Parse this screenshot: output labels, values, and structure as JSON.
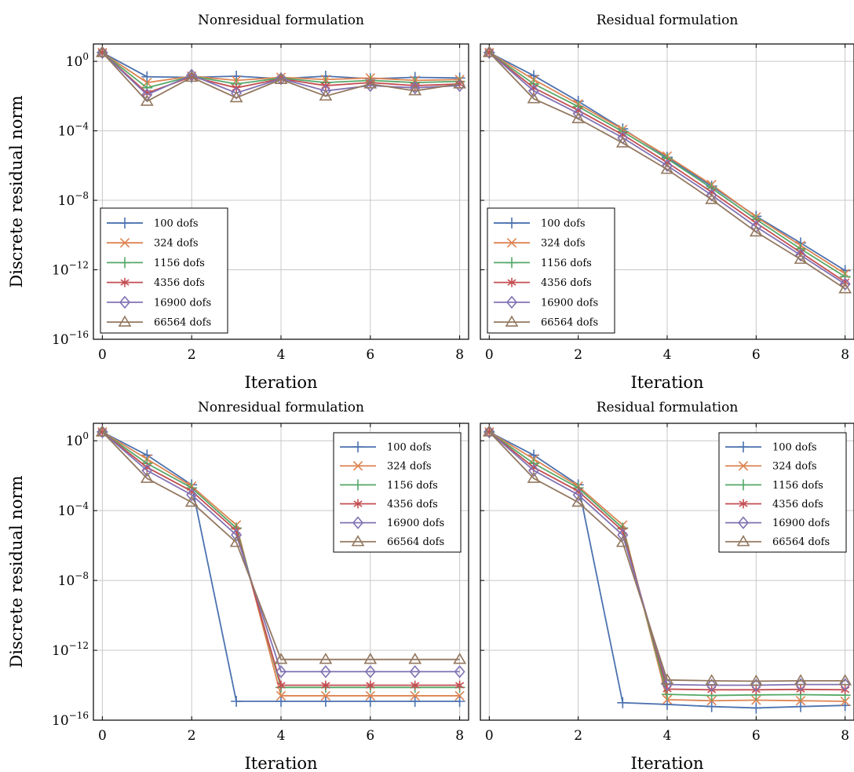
{
  "colors": {
    "100 dofs": "#4c72b0",
    "324 dofs": "#dd8452",
    "1156 dofs": "#55a868",
    "4356 dofs": "#c44e52",
    "16900 dofs": "#8172b3",
    "66564 dofs": "#937860"
  },
  "markers": {
    "100 dofs": "plus",
    "324 dofs": "cross",
    "1156 dofs": "plus",
    "4356 dofs": "asterisk",
    "16900 dofs": "diamond",
    "66564 dofs": "triangle"
  },
  "chart_data": [
    {
      "type": "line",
      "title": "Nonresidual formulation",
      "xlabel": "Iteration",
      "ylabel": "Discrete residual norm",
      "yscale": "log",
      "xlim": [
        -0.2,
        8.2
      ],
      "ylim": [
        1e-16,
        10
      ],
      "xticks": [
        "0",
        "2",
        "4",
        "6",
        "8"
      ],
      "yticks": [
        "10^0",
        "10^-4",
        "10^-8",
        "10^-12",
        "10^-16"
      ],
      "grid": true,
      "legend_position": "lower-left",
      "x": [
        0,
        1,
        2,
        3,
        4,
        5,
        6,
        7,
        8
      ],
      "series": [
        {
          "name": "100 dofs",
          "values": [
            3.2,
            0.13,
            0.12,
            0.14,
            0.1,
            0.14,
            0.1,
            0.12,
            0.11
          ]
        },
        {
          "name": "324 dofs",
          "values": [
            3.2,
            0.06,
            0.14,
            0.08,
            0.12,
            0.09,
            0.11,
            0.08,
            0.09
          ]
        },
        {
          "name": "1156 dofs",
          "values": [
            3.2,
            0.03,
            0.14,
            0.05,
            0.11,
            0.06,
            0.08,
            0.06,
            0.07
          ]
        },
        {
          "name": "4356 dofs",
          "values": [
            3.2,
            0.015,
            0.13,
            0.03,
            0.1,
            0.04,
            0.06,
            0.04,
            0.05
          ]
        },
        {
          "name": "16900 dofs",
          "values": [
            3.2,
            0.012,
            0.16,
            0.015,
            0.1,
            0.02,
            0.04,
            0.03,
            0.04
          ]
        },
        {
          "name": "66564 dofs",
          "values": [
            3.2,
            0.005,
            0.12,
            0.008,
            0.09,
            0.01,
            0.05,
            0.02,
            0.05
          ]
        }
      ]
    },
    {
      "type": "line",
      "title": "Residual formulation",
      "xlabel": "Iteration",
      "ylabel": "",
      "yscale": "log",
      "xlim": [
        -0.2,
        8.2
      ],
      "ylim": [
        1e-16,
        10
      ],
      "xticks": [
        "0",
        "2",
        "4",
        "6",
        "8"
      ],
      "yticks": [],
      "grid": true,
      "legend_position": "lower-left",
      "x": [
        0,
        1,
        2,
        3,
        4,
        5,
        6,
        7,
        8
      ],
      "series": [
        {
          "name": "100 dofs",
          "values": [
            3.2,
            0.15,
            0.005,
            0.00013,
            3e-06,
            6.5e-08,
            1.2e-09,
            3.5e-11,
            9e-13
          ]
        },
        {
          "name": "324 dofs",
          "values": [
            3.2,
            0.09,
            0.0035,
            0.00012,
            3.5e-06,
            8e-08,
            1.1e-09,
            2.5e-11,
            6e-13
          ]
        },
        {
          "name": "1156 dofs",
          "values": [
            3.2,
            0.05,
            0.0025,
            9e-05,
            2.5e-06,
            5e-08,
            8e-10,
            1.6e-11,
            4e-13
          ]
        },
        {
          "name": "4356 dofs",
          "values": [
            3.2,
            0.03,
            0.0015,
            6e-05,
            1.5e-06,
            3e-08,
            5e-10,
            1e-11,
            2e-13
          ]
        },
        {
          "name": "16900 dofs",
          "values": [
            3.2,
            0.02,
            0.001,
            4e-05,
            1e-06,
            2e-08,
            3e-10,
            7e-12,
            1.5e-13
          ]
        },
        {
          "name": "66564 dofs",
          "values": [
            3.2,
            0.007,
            0.0005,
            2e-05,
            6e-07,
            1.1e-08,
            1.5e-10,
            4e-12,
            8e-14
          ]
        }
      ]
    },
    {
      "type": "line",
      "title": "Nonresidual formulation",
      "xlabel": "Iteration",
      "ylabel": "Discrete residual norm",
      "yscale": "log",
      "xlim": [
        -0.2,
        8.2
      ],
      "ylim": [
        1e-16,
        10
      ],
      "xticks": [
        "0",
        "2",
        "4",
        "6",
        "8"
      ],
      "yticks": [
        "10^0",
        "10^-4",
        "10^-8",
        "10^-12",
        "10^-16"
      ],
      "grid": true,
      "legend_position": "upper-right",
      "x": [
        0,
        1,
        2,
        3,
        4,
        5,
        6,
        7,
        8
      ],
      "series": [
        {
          "name": "100 dofs",
          "values": [
            3.2,
            0.15,
            0.003,
            1.2e-15,
            1.2e-15,
            1.2e-15,
            1.2e-15,
            1.2e-15,
            1.2e-15
          ]
        },
        {
          "name": "324 dofs",
          "values": [
            3.2,
            0.09,
            0.0025,
            1.5e-05,
            2.5e-15,
            2.5e-15,
            2.5e-15,
            2.5e-15,
            2.5e-15
          ]
        },
        {
          "name": "1156 dofs",
          "values": [
            3.2,
            0.05,
            0.002,
            1e-05,
            7.5e-15,
            7.5e-15,
            7.5e-15,
            7.5e-15,
            7.5e-15
          ]
        },
        {
          "name": "4356 dofs",
          "values": [
            3.2,
            0.03,
            0.0013,
            7e-06,
            1e-14,
            1e-14,
            1e-14,
            1e-14,
            1e-14
          ]
        },
        {
          "name": "16900 dofs",
          "values": [
            3.2,
            0.02,
            0.0008,
            4e-06,
            6e-14,
            6e-14,
            6e-14,
            6e-14,
            6e-14
          ]
        },
        {
          "name": "66564 dofs",
          "values": [
            3.2,
            0.007,
            0.0003,
            1.5e-06,
            3e-13,
            3e-13,
            3e-13,
            3e-13,
            3e-13
          ]
        }
      ]
    },
    {
      "type": "line",
      "title": "Residual formulation",
      "xlabel": "Iteration",
      "ylabel": "",
      "yscale": "log",
      "xlim": [
        -0.2,
        8.2
      ],
      "ylim": [
        1e-16,
        10
      ],
      "xticks": [
        "0",
        "2",
        "4",
        "6",
        "8"
      ],
      "yticks": [],
      "grid": true,
      "legend_position": "upper-right",
      "x": [
        0,
        1,
        2,
        3,
        4,
        5,
        6,
        7,
        8
      ],
      "series": [
        {
          "name": "100 dofs",
          "values": [
            3.2,
            0.15,
            0.003,
            1e-15,
            8e-16,
            6e-16,
            5e-16,
            6e-16,
            7e-16
          ]
        },
        {
          "name": "324 dofs",
          "values": [
            3.2,
            0.09,
            0.0025,
            1.5e-05,
            1.5e-15,
            1.3e-15,
            1.4e-15,
            1.3e-15,
            1.2e-15
          ]
        },
        {
          "name": "1156 dofs",
          "values": [
            3.2,
            0.05,
            0.002,
            1e-05,
            3e-15,
            2.6e-15,
            2.8e-15,
            2.9e-15,
            2.7e-15
          ]
        },
        {
          "name": "4356 dofs",
          "values": [
            3.2,
            0.03,
            0.0013,
            7e-06,
            6e-15,
            5.5e-15,
            5.5e-15,
            5.8e-15,
            5.5e-15
          ]
        },
        {
          "name": "16900 dofs",
          "values": [
            3.2,
            0.02,
            0.0008,
            4e-06,
            1.1e-14,
            1e-14,
            1e-14,
            1.1e-14,
            1.1e-14
          ]
        },
        {
          "name": "66564 dofs",
          "values": [
            3.2,
            0.007,
            0.0003,
            1.5e-06,
            2e-14,
            1.8e-14,
            1.7e-14,
            1.8e-14,
            1.8e-14
          ]
        }
      ]
    }
  ]
}
